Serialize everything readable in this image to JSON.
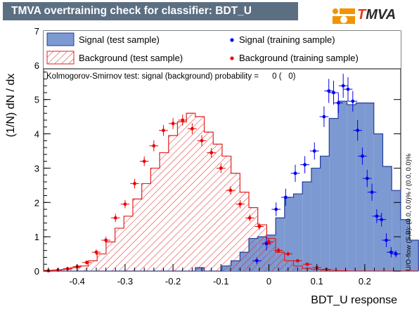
{
  "header": {
    "title": "TMVA overtraining check for classifier: BDT_U",
    "logo_prefix": "T",
    "logo_suffix": "MVA"
  },
  "colors": {
    "title_bar": "#5c6f82",
    "signal_fill": "#7d99d1",
    "signal_line": "#1f3e9b",
    "background_hatch": "#e02020",
    "signal_marker": "#0000ee",
    "background_marker": "#ee0000"
  },
  "chart_data": {
    "type": "histogram",
    "title": "TMVA overtraining check for classifier: BDT_U",
    "xlabel": "BDT_U response",
    "ylabel": "(1/N) dN / dx",
    "xlim": [
      -0.47,
      0.275
    ],
    "ylim": [
      0,
      7
    ],
    "bin_width": 0.01862,
    "x_ticks": [
      "-0.4",
      "-0.3",
      "-0.2",
      "-0.1",
      "0",
      "0.1",
      "0.2"
    ],
    "x_tick_values": [
      -0.4,
      -0.3,
      -0.2,
      -0.1,
      0,
      0.1,
      0.2
    ],
    "y_ticks": [
      "0",
      "1",
      "2",
      "3",
      "4",
      "5",
      "6",
      "7"
    ],
    "y_tick_values": [
      0,
      1,
      2,
      3,
      4,
      5,
      6,
      7
    ],
    "legend": [
      {
        "label": "Signal (test sample)",
        "kind": "signal-fill"
      },
      {
        "label": "Signal (training sample)",
        "kind": "signal-marker"
      },
      {
        "label": "Background (test sample)",
        "kind": "background-hatch"
      },
      {
        "label": "Background (training sample)",
        "kind": "background-marker"
      }
    ],
    "ks_text": "Kolmogorov-Smirnov test: signal (background) probability =      0 (   0)",
    "overflow_text": "U/O-flow (S,B): (0.0, 0.0)% / (0.0, 0.0)%",
    "series": [
      {
        "name": "Signal (test sample)",
        "style": "histogram-fill",
        "values": [
          0,
          0,
          0,
          0,
          0,
          0,
          0,
          0,
          0,
          0,
          0,
          0,
          0,
          0,
          0,
          0,
          0,
          0.1,
          0,
          0,
          0.15,
          0.3,
          0.55,
          0.95,
          1.0,
          1.05,
          1.55,
          2.15,
          2.25,
          2.6,
          3.0,
          3.35,
          4.45,
          4.95,
          4.85,
          4.9,
          4.9,
          4.0,
          3.05,
          2.35,
          1.5,
          0.9
        ]
      },
      {
        "name": "Background (test sample)",
        "style": "histogram-hatch",
        "values": [
          0.02,
          0.03,
          0.05,
          0.1,
          0.15,
          0.3,
          0.5,
          0.85,
          1.25,
          1.6,
          2.1,
          2.55,
          3.0,
          3.45,
          3.95,
          4.35,
          4.6,
          4.5,
          4.05,
          3.7,
          3.35,
          2.85,
          2.3,
          1.85,
          1.35,
          0.95,
          0.55,
          0.3,
          0.15,
          0.08,
          0.05,
          0.03,
          0.02,
          0.01,
          0,
          0,
          0,
          0,
          0,
          0,
          0,
          0
        ]
      },
      {
        "name": "Signal (training sample)",
        "style": "markers",
        "x": [
          -0.025,
          -0.005,
          0.015,
          0.035,
          0.055,
          0.075,
          0.095,
          0.115,
          0.125,
          0.135,
          0.145,
          0.155,
          0.165,
          0.175,
          0.185,
          0.195,
          0.205,
          0.215,
          0.225,
          0.235,
          0.245,
          0.255,
          0.265
        ],
        "y": [
          0.3,
          0.8,
          1.8,
          2.15,
          2.85,
          3.1,
          3.5,
          4.5,
          5.25,
          5.2,
          4.9,
          5.4,
          5.3,
          4.95,
          4.1,
          3.35,
          2.7,
          2.3,
          1.6,
          1.5,
          0.9,
          0.55,
          0.5
        ],
        "yerr": [
          0.1,
          0.2,
          0.2,
          0.25,
          0.25,
          0.25,
          0.25,
          0.3,
          0.35,
          0.35,
          0.3,
          0.35,
          0.35,
          0.3,
          0.3,
          0.25,
          0.25,
          0.25,
          0.2,
          0.2,
          0.2,
          0.15,
          0.1
        ]
      },
      {
        "name": "Background (training sample)",
        "style": "markers",
        "x": [
          -0.46,
          -0.44,
          -0.42,
          -0.4,
          -0.38,
          -0.36,
          -0.34,
          -0.32,
          -0.3,
          -0.28,
          -0.26,
          -0.24,
          -0.22,
          -0.2,
          -0.18,
          -0.16,
          -0.14,
          -0.12,
          -0.1,
          -0.08,
          -0.06,
          -0.04,
          -0.02,
          0.0,
          0.02,
          0.04,
          0.06,
          0.08,
          0.1,
          0.12
        ],
        "y": [
          0.01,
          0.03,
          0.07,
          0.13,
          0.25,
          0.55,
          0.9,
          1.55,
          1.95,
          2.55,
          3.2,
          3.65,
          4.1,
          4.3,
          4.4,
          4.15,
          3.8,
          3.45,
          3.0,
          2.35,
          1.95,
          1.55,
          1.3,
          0.85,
          0.6,
          0.5,
          0.3,
          0.2,
          0.1,
          0.05
        ],
        "yerr": [
          0.01,
          0.02,
          0.03,
          0.05,
          0.06,
          0.08,
          0.1,
          0.12,
          0.12,
          0.14,
          0.14,
          0.16,
          0.16,
          0.16,
          0.16,
          0.16,
          0.16,
          0.14,
          0.14,
          0.12,
          0.12,
          0.1,
          0.1,
          0.08,
          0.07,
          0.06,
          0.05,
          0.04,
          0.03,
          0.02
        ]
      }
    ]
  }
}
